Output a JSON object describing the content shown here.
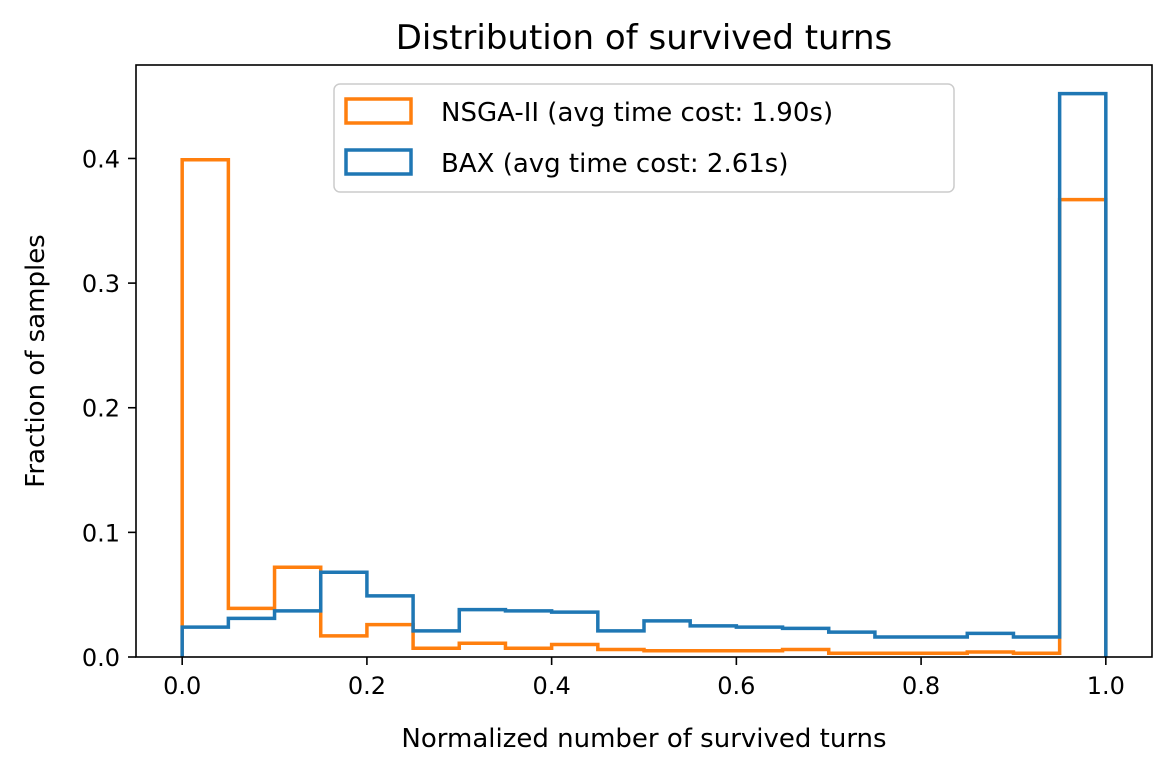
{
  "chart_data": {
    "type": "histogram-step",
    "title": "Distribution of survived turns",
    "xlabel": "Normalized number of survived turns",
    "ylabel": "Fraction of samples",
    "xlim": [
      -0.05,
      1.05
    ],
    "ylim": [
      0.0,
      0.475
    ],
    "xticks": [
      0.0,
      0.2,
      0.4,
      0.6,
      0.8,
      1.0
    ],
    "xtick_labels": [
      "0.0",
      "0.2",
      "0.4",
      "0.6",
      "0.8",
      "1.0"
    ],
    "yticks": [
      0.0,
      0.1,
      0.2,
      0.3,
      0.4
    ],
    "ytick_labels": [
      "0.0",
      "0.1",
      "0.2",
      "0.3",
      "0.4"
    ],
    "bin_edges": [
      0.0,
      0.05,
      0.1,
      0.15,
      0.2,
      0.25,
      0.3,
      0.35,
      0.4,
      0.45,
      0.5,
      0.55,
      0.6,
      0.65,
      0.7,
      0.75,
      0.8,
      0.85,
      0.9,
      0.95,
      1.0
    ],
    "legend_position": "upper-center",
    "series": [
      {
        "name": "NSGA-II (avg time cost: 1.90s)",
        "color": "#ff7f0e",
        "values": [
          0.399,
          0.039,
          0.072,
          0.017,
          0.026,
          0.007,
          0.011,
          0.007,
          0.01,
          0.006,
          0.005,
          0.005,
          0.005,
          0.006,
          0.003,
          0.003,
          0.003,
          0.004,
          0.003,
          0.367
        ]
      },
      {
        "name": "BAX (avg time cost: 2.61s)",
        "color": "#1f77b4",
        "values": [
          0.024,
          0.031,
          0.037,
          0.068,
          0.049,
          0.021,
          0.038,
          0.037,
          0.036,
          0.021,
          0.029,
          0.025,
          0.024,
          0.023,
          0.02,
          0.016,
          0.016,
          0.019,
          0.016,
          0.452
        ]
      }
    ]
  }
}
